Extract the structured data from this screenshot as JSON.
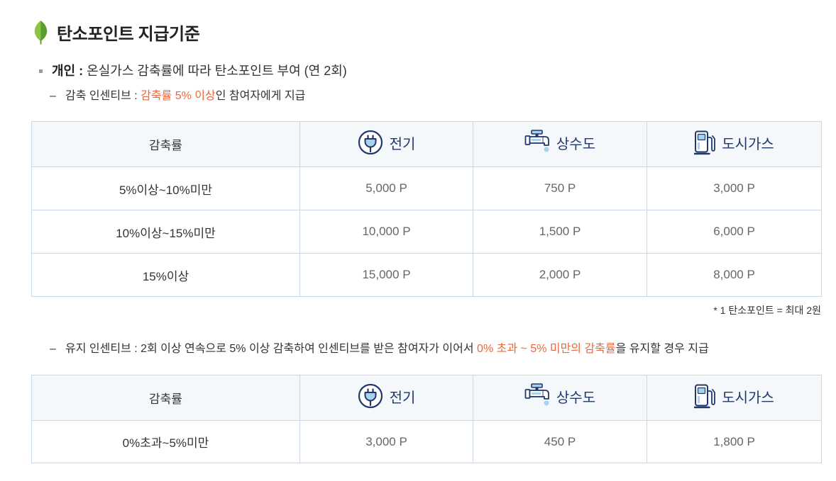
{
  "title": "탄소포인트 지급기준",
  "icons": {
    "title": "leaf-icon",
    "bullet": "square-bullet-icon",
    "electricity": "plug-icon",
    "water": "faucet-icon",
    "gas": "gas-pump-icon"
  },
  "colors": {
    "text": "#333333",
    "value_text": "#666666",
    "highlight": "#e8683f",
    "header_label": "#22386a",
    "table_header_bg": "#f4f8fb",
    "table_border": "#c8d8e6",
    "leaf_light": "#8cc63f",
    "leaf_dark": "#5a9e2f",
    "icon_accent": "#a7d3f0"
  },
  "individual": {
    "label": "개인 :",
    "text": "온실가스 감축률에 따라 탄소포인트 부여 (연 2회)"
  },
  "reduction_incentive": {
    "dash": "–",
    "label": "감축 인센티브 :",
    "highlight": "감축률 5% 이상",
    "suffix": "인 참여자에게 지급"
  },
  "reduction_table": {
    "columns": [
      "감축률",
      "전기",
      "상수도",
      "도시가스"
    ],
    "rows": [
      {
        "rate": "5%이상~10%미만",
        "electricity": "5,000 P",
        "water": "750 P",
        "gas": "3,000 P"
      },
      {
        "rate": "10%이상~15%미만",
        "electricity": "10,000 P",
        "water": "1,500 P",
        "gas": "6,000 P"
      },
      {
        "rate": "15%이상",
        "electricity": "15,000 P",
        "water": "2,000 P",
        "gas": "8,000 P"
      }
    ]
  },
  "note": "* 1 탄소포인트 = 최대 2원",
  "maintenance_incentive": {
    "dash": "–",
    "label": "유지 인센티브 :",
    "text": "2회 이상 연속으로 5% 이상 감축하여 인센티브를 받은 참여자가 이어서",
    "highlight": "0% 초과 ~ 5% 미만의 감축률",
    "suffix": "을 유지할 경우 지급"
  },
  "maintenance_table": {
    "columns": [
      "감축률",
      "전기",
      "상수도",
      "도시가스"
    ],
    "rows": [
      {
        "rate": "0%초과~5%미만",
        "electricity": "3,000 P",
        "water": "450 P",
        "gas": "1,800 P"
      }
    ]
  }
}
